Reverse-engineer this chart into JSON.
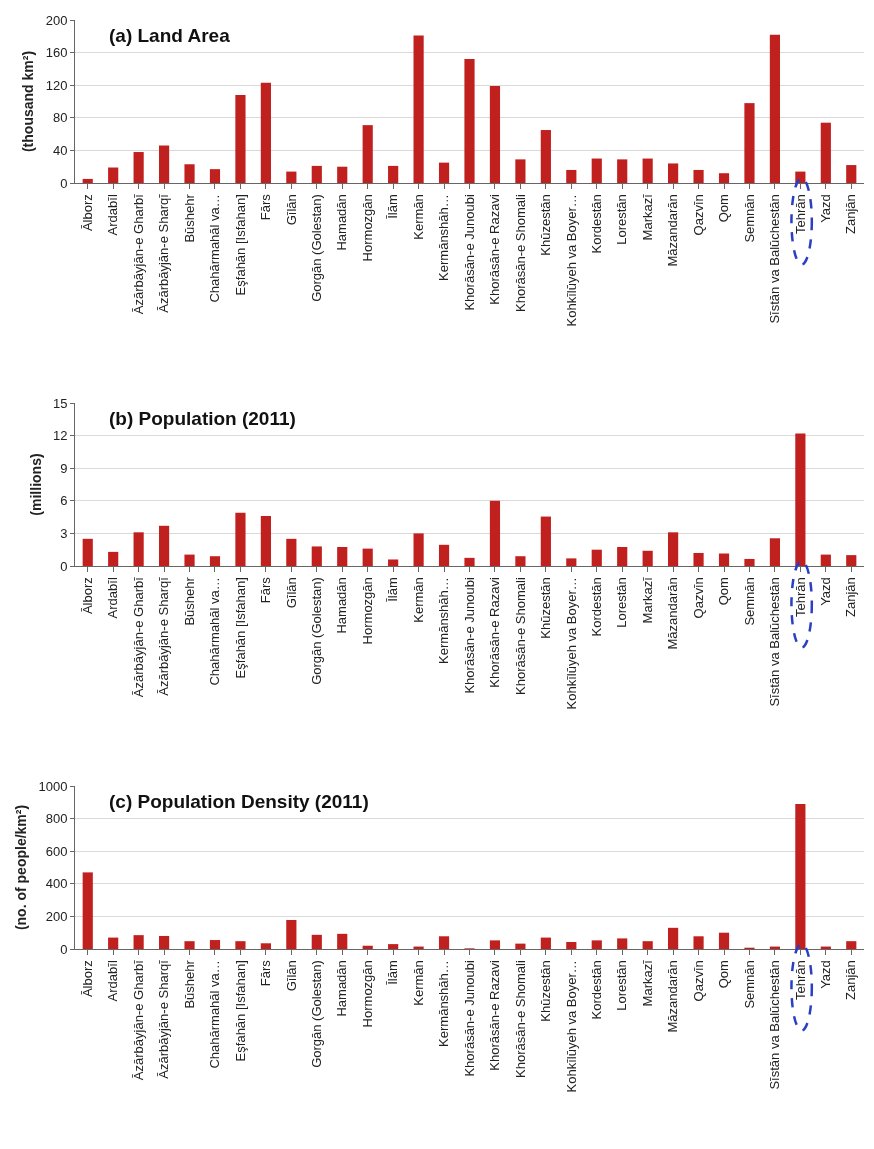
{
  "chart_data": [
    {
      "type": "bar",
      "title": "(a) Land Area",
      "ylabel": "(thousand km²)",
      "categories": [
        "Ālborz",
        "Ardabīl",
        "Āzārbāyjān-e Gharbī",
        "Āzārbāyjān-e Sharqī",
        "Būshehr",
        "Chahārmahāl va…",
        "Eşfahān [Isfahan]",
        "Fārs",
        "Gīlān",
        "Gorgān (Golestan)",
        "Hamadān",
        "Hormozgān",
        "Īlām",
        "Kermān",
        "Kermānshāh…",
        "Khorāsān-e Junoubi",
        "Khorāsān-e Razavi",
        "Khorāsān-e Shomali",
        "Khūzestān",
        "Kohkīlūyeh va Boyer…",
        "Kordestān",
        "Lorestān",
        "Markazī",
        "Māzandarān",
        "Qazvīn",
        "Qom",
        "Semnān",
        "Sīstān va Balūchestān",
        "Tehrān",
        "Yazd",
        "Zanjān"
      ],
      "values": [
        5,
        19,
        38,
        46,
        23,
        17,
        108,
        123,
        14,
        21,
        20,
        71,
        21,
        181,
        25,
        152,
        119,
        29,
        65,
        16,
        30,
        29,
        30,
        24,
        16,
        12,
        98,
        182,
        14,
        74,
        22
      ],
      "color": "#c0201e",
      "ylim": [
        0,
        200
      ],
      "yticks": [
        0,
        40,
        80,
        120,
        160,
        200
      ],
      "grid": "y",
      "legend": false
    },
    {
      "type": "bar",
      "title": "(b) Population (2011)",
      "ylabel": "(millions)",
      "categories": [
        "Ālborz",
        "Ardabīl",
        "Āzārbāyjān-e Gharbī",
        "Āzārbāyjān-e Sharqī",
        "Būshehr",
        "Chahārmahāl va…",
        "Eşfahān [Isfahan]",
        "Fārs",
        "Gīlān",
        "Gorgān (Golestan)",
        "Hamadān",
        "Hormozgān",
        "Īlām",
        "Kermān",
        "Kermānshāh…",
        "Khorāsān-e Junoubi",
        "Khorāsān-e Razavi",
        "Khorāsān-e Shomali",
        "Khūzestān",
        "Kohkīlūyeh va Boyer…",
        "Kordestān",
        "Lorestān",
        "Markazī",
        "Māzandarān",
        "Qazvīn",
        "Qom",
        "Semnān",
        "Sīstān va Balūchestān",
        "Tehrān",
        "Yazd",
        "Zanjān"
      ],
      "values": [
        2.5,
        1.3,
        3.1,
        3.7,
        1.05,
        0.9,
        4.9,
        4.6,
        2.5,
        1.8,
        1.75,
        1.6,
        0.6,
        3.0,
        1.95,
        0.75,
        6.0,
        0.9,
        4.55,
        0.7,
        1.5,
        1.75,
        1.4,
        3.1,
        1.2,
        1.15,
        0.65,
        2.55,
        12.2,
        1.05,
        1.0
      ],
      "color": "#c0201e",
      "ylim": [
        0,
        15
      ],
      "yticks": [
        0,
        3,
        6,
        9,
        12,
        15
      ],
      "grid": "y",
      "legend": false
    },
    {
      "type": "bar",
      "title": "(c) Population Density (2011)",
      "ylabel": "(no. of people/km²)",
      "categories": [
        "Ālborz",
        "Ardabīl",
        "Āzārbāyjān-e Gharbī",
        "Āzārbāyjān-e Sharqī",
        "Būshehr",
        "Chahārmahāl va…",
        "Eşfahān [Isfahan]",
        "Fārs",
        "Gīlān",
        "Gorgān (Golestan)",
        "Hamadān",
        "Hormozgān",
        "Īlām",
        "Kermān",
        "Kermānshāh…",
        "Khorāsān-e Junoubi",
        "Khorāsān-e Razavi",
        "Khorāsān-e Shomali",
        "Khūzestān",
        "Kohkīlūyeh va Boyer…",
        "Kordestān",
        "Lorestān",
        "Markazī",
        "Māzandarān",
        "Qazvīn",
        "Qom",
        "Semnān",
        "Sīstān va Balūchestān",
        "Tehrān",
        "Yazd",
        "Zanjān"
      ],
      "values": [
        470,
        70,
        85,
        80,
        48,
        55,
        48,
        35,
        178,
        87,
        93,
        20,
        30,
        15,
        78,
        4,
        53,
        33,
        70,
        43,
        53,
        65,
        48,
        130,
        78,
        100,
        8,
        15,
        890,
        15,
        48
      ],
      "color": "#c0201e",
      "ylim": [
        0,
        1000
      ],
      "yticks": [
        0,
        200,
        400,
        600,
        800,
        1000
      ],
      "grid": "y",
      "legend": false
    }
  ]
}
